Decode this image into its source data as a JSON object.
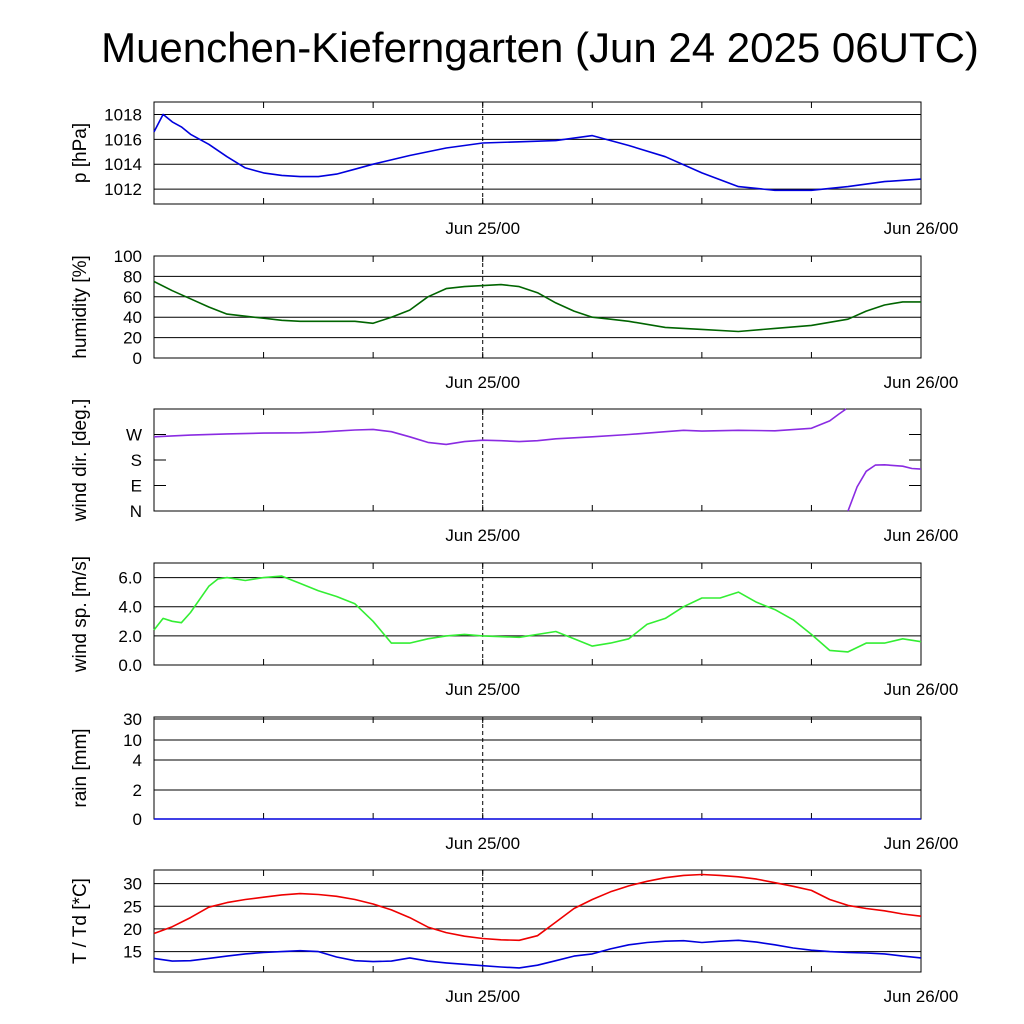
{
  "title": "Muenchen-Kieferngarten (Jun 24 2025 06UTC)",
  "chart_data": [
    {
      "type": "line",
      "ylabel": "p [hPa]",
      "x_tick_labels": [
        "Jun 25/00",
        "Jun 26/00"
      ],
      "x": [
        0,
        0.5,
        1,
        1.5,
        2,
        3,
        4,
        5,
        6,
        7,
        8,
        9,
        10,
        11,
        12,
        14,
        16,
        18,
        20,
        22,
        24,
        26,
        28,
        30,
        32,
        34,
        36,
        38,
        40,
        42
      ],
      "ylim": [
        1010.8,
        1019
      ],
      "yticks": [
        1012,
        1014,
        1016,
        1018
      ],
      "grid": true,
      "series": [
        {
          "color": "#0000dd",
          "values": [
            1016.6,
            1018.0,
            1017.4,
            1017.0,
            1016.4,
            1015.6,
            1014.6,
            1013.7,
            1013.3,
            1013.1,
            1013.0,
            1013.0,
            1013.2,
            1013.6,
            1014.0,
            1014.7,
            1015.3,
            1015.7,
            1015.8,
            1015.9,
            1016.3,
            1015.5,
            1014.6,
            1013.3,
            1012.2,
            1011.9,
            1011.9,
            1012.2,
            1012.6,
            1012.8
          ]
        }
      ]
    },
    {
      "type": "line",
      "ylabel": "humidity [%]",
      "x_tick_labels": [
        "Jun 25/00",
        "Jun 26/00"
      ],
      "x": [
        0,
        1,
        2,
        3,
        4,
        5,
        6,
        7,
        8,
        9,
        10,
        11,
        12,
        13,
        14,
        15,
        16,
        17,
        18,
        19,
        20,
        21,
        22,
        23,
        24,
        25,
        26,
        28,
        30,
        32,
        34,
        36,
        38,
        39,
        40,
        41,
        42
      ],
      "ylim": [
        0,
        100
      ],
      "yticks": [
        0,
        20,
        40,
        60,
        80,
        100
      ],
      "grid": true,
      "series": [
        {
          "color": "#006400",
          "values": [
            75,
            66,
            58,
            50,
            43,
            41,
            39,
            37,
            36,
            36,
            36,
            36,
            34,
            40,
            47,
            60,
            68,
            70,
            71,
            72,
            70,
            64,
            54,
            46,
            40,
            38,
            36,
            30,
            28,
            26,
            29,
            32,
            38,
            46,
            52,
            55,
            55
          ]
        }
      ]
    },
    {
      "type": "line",
      "ylabel": "wind dir. [deg.]",
      "x_tick_labels": [
        "Jun 25/00",
        "Jun 26/00"
      ],
      "yticks": [
        0,
        90,
        180,
        270
      ],
      "ytick_labels": [
        "N",
        "E",
        "S",
        "W"
      ],
      "ylim": [
        0,
        360
      ],
      "grid": false,
      "series": [
        {
          "color": "#8a2be2",
          "x": [
            0,
            1,
            2,
            4,
            6,
            8,
            9,
            10,
            11,
            12,
            13,
            14,
            15,
            16,
            17,
            18,
            19,
            20,
            21,
            22,
            24,
            26,
            28,
            29,
            30,
            32,
            34,
            36,
            37,
            37.5,
            37.9
          ],
          "values": [
            262,
            265,
            268,
            272,
            275,
            276,
            278,
            282,
            286,
            288,
            280,
            262,
            242,
            235,
            245,
            250,
            248,
            245,
            248,
            255,
            262,
            270,
            280,
            285,
            282,
            285,
            283,
            292,
            318,
            342,
            360
          ]
        },
        {
          "color": "#8a2be2",
          "x": [
            38,
            38.5,
            39,
            39.5,
            40,
            41,
            41.5,
            42
          ],
          "values": [
            0,
            85,
            140,
            162,
            163,
            158,
            150,
            148
          ]
        }
      ]
    },
    {
      "type": "line",
      "ylabel": "wind sp. [m/s]",
      "x_tick_labels": [
        "Jun 25/00",
        "Jun 26/00"
      ],
      "x": [
        0,
        0.5,
        1,
        1.5,
        2,
        3,
        3.5,
        4,
        5,
        6,
        7,
        8,
        9,
        10,
        11,
        12,
        13,
        14,
        15,
        16,
        17,
        18,
        20,
        22,
        23,
        24,
        25,
        26,
        27,
        28,
        29,
        30,
        31,
        32,
        33,
        34,
        35,
        36,
        37,
        38,
        39,
        40,
        41,
        42
      ],
      "ylim": [
        0,
        7
      ],
      "yticks": [
        0,
        2,
        4,
        6
      ],
      "ytick_labels": [
        "0.0",
        "2.0",
        "4.0",
        "6.0"
      ],
      "grid": true,
      "series": [
        {
          "color": "#33ee33",
          "values": [
            2.4,
            3.2,
            3.0,
            2.9,
            3.6,
            5.4,
            5.9,
            6.0,
            5.8,
            6.0,
            6.1,
            5.6,
            5.1,
            4.7,
            4.2,
            3.0,
            1.5,
            1.5,
            1.8,
            2.0,
            2.1,
            2.0,
            1.9,
            2.3,
            1.8,
            1.3,
            1.5,
            1.8,
            2.8,
            3.2,
            4.0,
            4.6,
            4.6,
            5.0,
            4.3,
            3.8,
            3.1,
            2.1,
            1.0,
            0.9,
            1.5,
            1.5,
            1.8,
            1.6
          ]
        }
      ]
    },
    {
      "type": "line",
      "ylabel": "rain [mm]",
      "x_tick_labels": [
        "Jun 25/00",
        "Jun 26/00"
      ],
      "x": [
        0,
        42
      ],
      "yticks": [
        0,
        2,
        4,
        10,
        30
      ],
      "ytick_labels": [
        "0",
        "2",
        "4",
        "10",
        "30"
      ],
      "grid": true,
      "series": [
        {
          "color": "#0000dd",
          "values": [
            0,
            0
          ]
        }
      ]
    },
    {
      "type": "line",
      "ylabel": "T / Td [*C]",
      "x_tick_labels": [
        "Jun 25/00",
        "Jun 26/00"
      ],
      "x": [
        0,
        1,
        2,
        3,
        4,
        5,
        6,
        7,
        8,
        9,
        10,
        11,
        12,
        13,
        14,
        15,
        16,
        17,
        18,
        19,
        20,
        21,
        22,
        23,
        24,
        25,
        26,
        27,
        28,
        29,
        30,
        31,
        32,
        33,
        34,
        35,
        36,
        37,
        38,
        39,
        40,
        41,
        42
      ],
      "ylim": [
        10.5,
        33
      ],
      "yticks": [
        15,
        20,
        25,
        30
      ],
      "grid": true,
      "series": [
        {
          "color": "#ee0000",
          "values": [
            19,
            20.5,
            22.5,
            24.8,
            25.8,
            26.5,
            27.0,
            27.5,
            27.8,
            27.6,
            27.2,
            26.5,
            25.5,
            24.2,
            22.5,
            20.4,
            19.2,
            18.4,
            17.9,
            17.6,
            17.5,
            18.5,
            21.5,
            24.5,
            26.5,
            28.2,
            29.5,
            30.5,
            31.3,
            31.8,
            32.0,
            31.8,
            31.5,
            31.0,
            30.2,
            29.4,
            28.5,
            26.5,
            25.2,
            24.5,
            24.0,
            23.3,
            22.8
          ]
        },
        {
          "color": "#0000dd",
          "values": [
            13.5,
            12.9,
            13.0,
            13.5,
            14.0,
            14.5,
            14.8,
            15.0,
            15.2,
            15.0,
            13.8,
            13.0,
            12.8,
            12.9,
            13.6,
            12.9,
            12.5,
            12.2,
            11.9,
            11.6,
            11.4,
            12.0,
            13.0,
            14.0,
            14.5,
            15.6,
            16.5,
            17.0,
            17.3,
            17.4,
            17.0,
            17.3,
            17.5,
            17.1,
            16.5,
            15.8,
            15.3,
            15.0,
            14.8,
            14.7,
            14.5,
            14.0,
            13.6
          ]
        }
      ]
    }
  ]
}
